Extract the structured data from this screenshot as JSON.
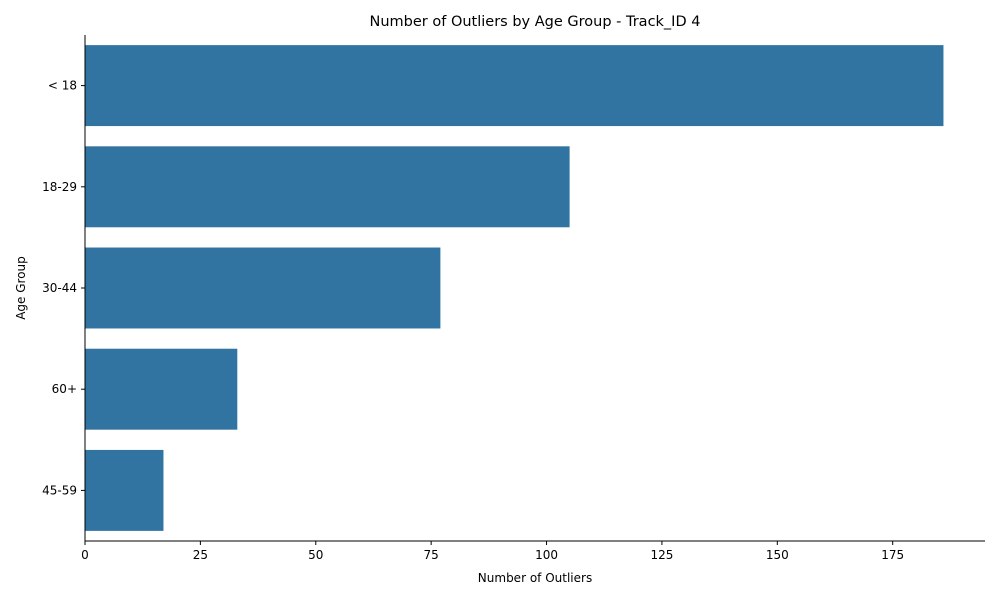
{
  "chart_data": {
    "type": "bar",
    "orientation": "horizontal",
    "title": "Number of Outliers by Age Group - Track_ID 4",
    "xlabel": "Number of Outliers",
    "ylabel": "Age Group",
    "categories": [
      "< 18",
      "18-29",
      "30-44",
      "60+",
      "45-59"
    ],
    "values": [
      186,
      105,
      77,
      33,
      17
    ],
    "xlim": [
      0,
      195
    ],
    "xticks": [
      0,
      25,
      50,
      75,
      100,
      125,
      150,
      175
    ],
    "grid": false,
    "legend": "none",
    "bar_color": "#3274a1"
  }
}
